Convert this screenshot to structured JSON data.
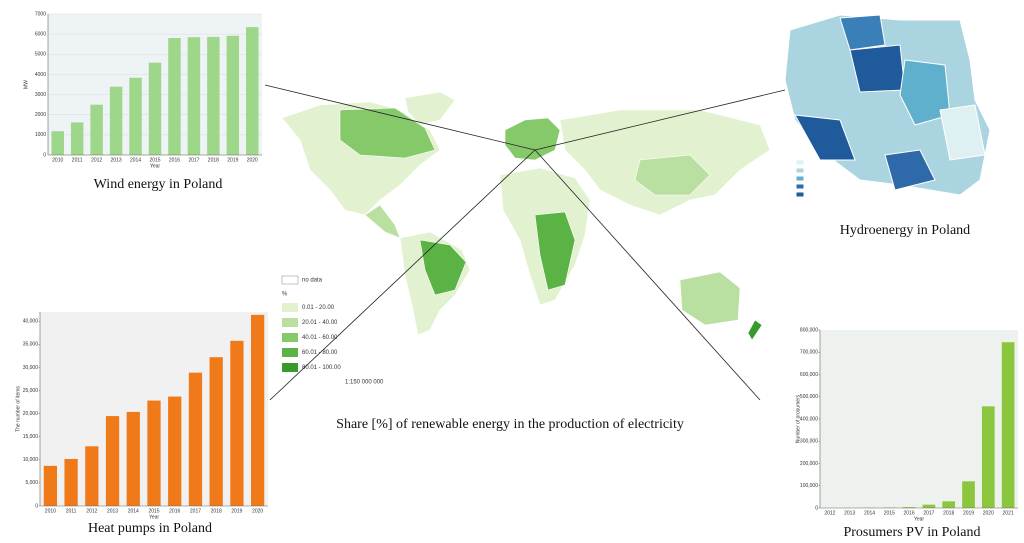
{
  "chart_data": [
    {
      "type": "bar",
      "title": "Wind energy in Poland",
      "x_label": "Year",
      "y_label": "MW",
      "categories": [
        "2010",
        "2011",
        "2012",
        "2013",
        "2014",
        "2015",
        "2016",
        "2017",
        "2018",
        "2019",
        "2020"
      ],
      "values": [
        1180,
        1616,
        2497,
        3390,
        3834,
        4582,
        5807,
        5848,
        5864,
        5917,
        6347
      ],
      "color": "#9ed68a",
      "ylim": [
        0,
        7000
      ],
      "yticks": [
        0,
        1000,
        2000,
        3000,
        4000,
        5000,
        6000,
        7000
      ],
      "grid": true
    },
    {
      "type": "bar",
      "title": "Heat pumps in Poland",
      "x_label": "Year",
      "y_label": "The number of items",
      "categories": [
        "2010",
        "2011",
        "2012",
        "2013",
        "2014",
        "2015",
        "2016",
        "2017",
        "2018",
        "2019",
        "2020"
      ],
      "values": [
        8690,
        10180,
        12930,
        19470,
        20370,
        22830,
        23690,
        28870,
        32210,
        35760,
        41380
      ],
      "color": "#f07a1a",
      "ylim": [
        0,
        42000
      ],
      "yticks": [
        0,
        {
          "value": 5000,
          "label": "5,000"
        },
        {
          "value": 10000,
          "label": "10,000"
        },
        {
          "value": 15000,
          "label": "15,000"
        },
        {
          "value": 20000,
          "label": "20,000"
        },
        {
          "value": 25000,
          "label": "25,000"
        },
        {
          "value": 30000,
          "label": "30,000"
        },
        {
          "value": 35000,
          "label": "35,000"
        },
        {
          "value": 40000,
          "label": "40,000"
        }
      ],
      "grid": false
    },
    {
      "type": "bar",
      "title": "Prosumers PV in Poland",
      "x_label": "Year",
      "y_label": "Number of prosumers",
      "categories": [
        "2012",
        "2013",
        "2014",
        "2015",
        "2016",
        "2017",
        "2018",
        "2019",
        "2020",
        "2021"
      ],
      "values": [
        100,
        300,
        1000,
        2000,
        4000,
        15000,
        30000,
        120000,
        457000,
        745000
      ],
      "color": "#8cc63e",
      "ylim": [
        0,
        800000
      ],
      "yticks": [
        0,
        {
          "value": 100000,
          "label": "100,000"
        },
        {
          "value": 200000,
          "label": "200,000"
        },
        {
          "value": 300000,
          "label": "300,000"
        },
        {
          "value": 400000,
          "label": "400,000"
        },
        {
          "value": 500000,
          "label": "500,000"
        },
        {
          "value": 600000,
          "label": "600,000"
        },
        {
          "value": 700000,
          "label": "700,000"
        },
        {
          "value": 800000,
          "label": "800,000"
        }
      ],
      "grid": false
    }
  ],
  "map": {
    "caption": "Share [%] of renewable energy in the production of electricity",
    "scale": "1:150 000 000",
    "legend": {
      "no_data": "no data",
      "unit": "%",
      "classes": [
        {
          "label": "0.01 - 20.00",
          "color": "#e2f1cf"
        },
        {
          "label": "20.01 - 40.00",
          "color": "#b9e0a0"
        },
        {
          "label": "40.01 - 60.00",
          "color": "#85c96b"
        },
        {
          "label": "60.01 - 80.00",
          "color": "#5bb245"
        },
        {
          "label": "80.01 - 100.00",
          "color": "#399a2c"
        }
      ]
    }
  },
  "hydro": {
    "caption": "Hydroenergy in Poland"
  }
}
